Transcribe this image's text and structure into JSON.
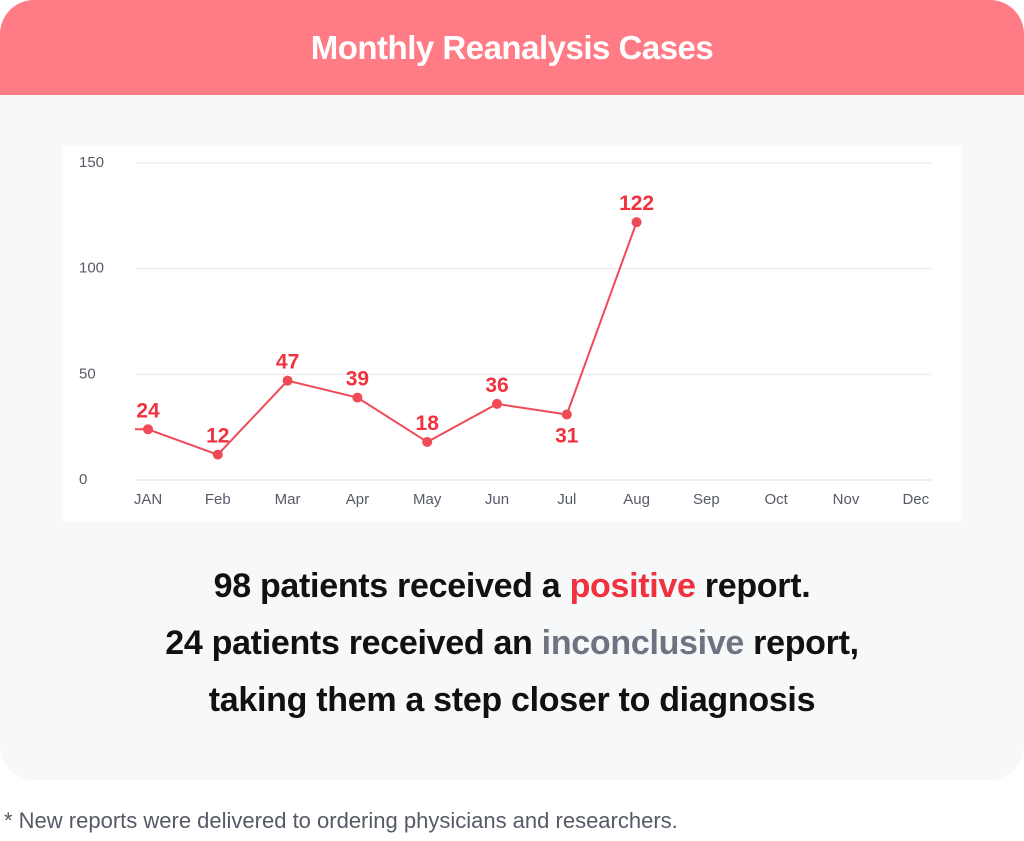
{
  "header": {
    "title": "Monthly Reanalysis Cases"
  },
  "chart_data": {
    "type": "line",
    "title": "",
    "xlabel": "",
    "ylabel": "",
    "categories": [
      "JAN",
      "Feb",
      "Mar",
      "Apr",
      "May",
      "Jun",
      "Jul",
      "Aug",
      "Sep",
      "Oct",
      "Nov",
      "Dec"
    ],
    "series": [
      {
        "values": [
          24,
          12,
          47,
          39,
          18,
          36,
          31,
          122,
          null,
          null,
          null,
          null
        ]
      }
    ],
    "ylim": [
      0,
      150
    ],
    "yticks": [
      0,
      50,
      100,
      150
    ],
    "grid": true,
    "data_labels": true,
    "colors": {
      "line": "#f04a57",
      "label": "#f0313e",
      "grid": "#e6e8ec",
      "tick": "#555a66"
    }
  },
  "summary": {
    "line1": {
      "before": "98 patients received a ",
      "highlight": "positive",
      "after": " report."
    },
    "line2": {
      "before": "24 patients received an ",
      "highlight": "inconclusive",
      "after": " report,"
    },
    "line3": {
      "text": "taking them a step closer to diagnosis"
    }
  },
  "footnote": "* New reports were delivered to ordering physicians and researchers.",
  "colors": {
    "header_bg": "#ff7b85",
    "card_bg": "#f7f8fa",
    "positive": "#f0313e",
    "inconclusive": "#6d7380"
  }
}
